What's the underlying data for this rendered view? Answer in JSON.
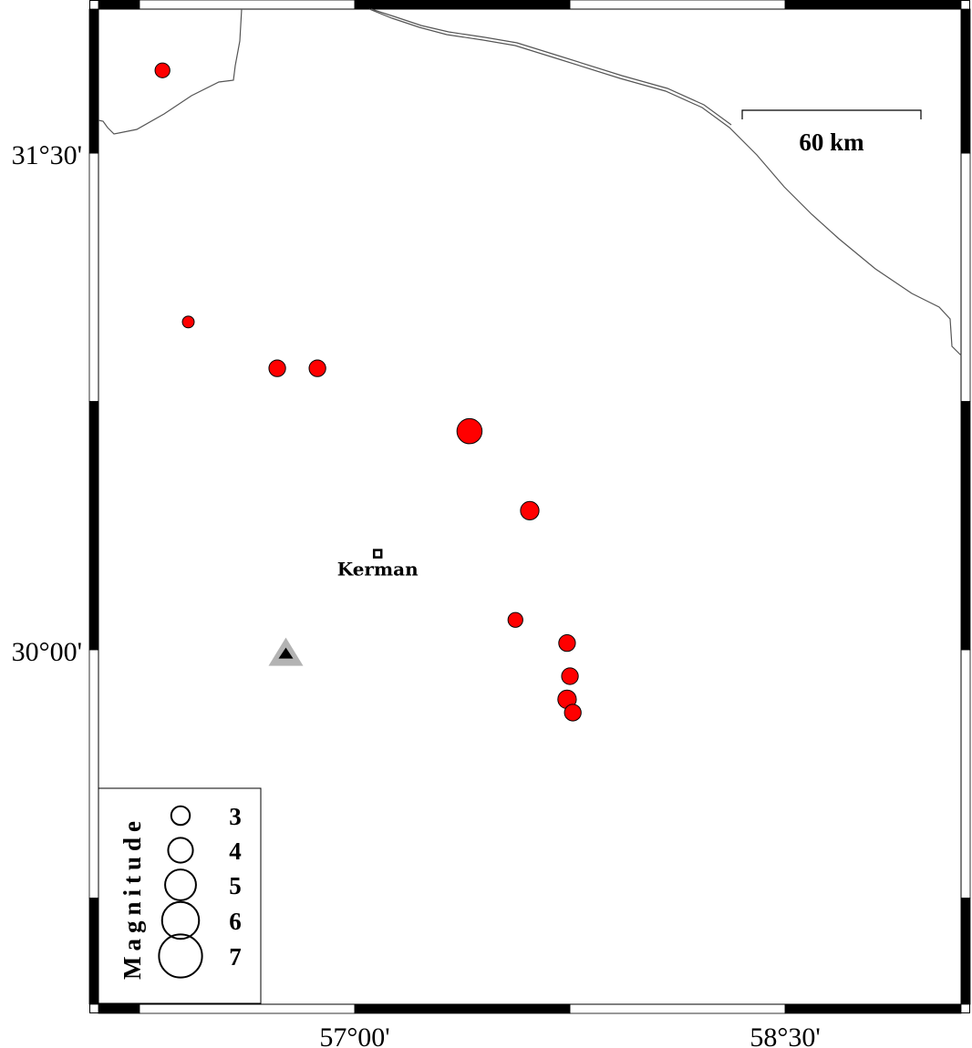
{
  "map": {
    "region": {
      "lon_min": 56.107,
      "lon_max": 59.113,
      "lat_min": 28.929,
      "lat_max": 31.935
    },
    "lon_ticks": [
      {
        "value": 57.0,
        "label": "57°00'"
      },
      {
        "value": 58.5,
        "label": "58°30'"
      }
    ],
    "lat_ticks": [
      {
        "value": 31.5,
        "label": "31°30'"
      },
      {
        "value": 30.0,
        "label": "30°00'"
      }
    ],
    "frame_interval_deg": 0.75,
    "colors": {
      "event": "#ff0000",
      "station_outer": "#b3b3b3",
      "station_inner": "#000000",
      "boundary": "#555555"
    },
    "scale_bar": {
      "label": "60 km"
    },
    "city": {
      "name": "Kerman",
      "lon": 57.08,
      "lat": 30.29,
      "icon": "square-marker-icon"
    },
    "station": {
      "lon": 56.76,
      "lat": 29.99,
      "icon": "triangle-station-icon"
    },
    "events": [
      {
        "lon": 56.33,
        "lat": 31.75,
        "mag": 2.4
      },
      {
        "lon": 56.42,
        "lat": 30.99,
        "mag": 1.9
      },
      {
        "lon": 56.73,
        "lat": 30.85,
        "mag": 2.7
      },
      {
        "lon": 56.87,
        "lat": 30.85,
        "mag": 2.7
      },
      {
        "lon": 57.4,
        "lat": 30.66,
        "mag": 4.1
      },
      {
        "lon": 57.61,
        "lat": 30.42,
        "mag": 3.0
      },
      {
        "lon": 57.56,
        "lat": 30.09,
        "mag": 2.4
      },
      {
        "lon": 57.74,
        "lat": 30.02,
        "mag": 2.7
      },
      {
        "lon": 57.75,
        "lat": 29.92,
        "mag": 2.7
      },
      {
        "lon": 57.74,
        "lat": 29.85,
        "mag": 3.0
      },
      {
        "lon": 57.76,
        "lat": 29.81,
        "mag": 2.7
      }
    ]
  },
  "legend": {
    "title": "Magnitude",
    "items": [
      {
        "mag": 3,
        "label": "3"
      },
      {
        "mag": 4,
        "label": "4"
      },
      {
        "mag": 5,
        "label": "5"
      },
      {
        "mag": 6,
        "label": "6"
      },
      {
        "mag": 7,
        "label": "7"
      }
    ]
  }
}
